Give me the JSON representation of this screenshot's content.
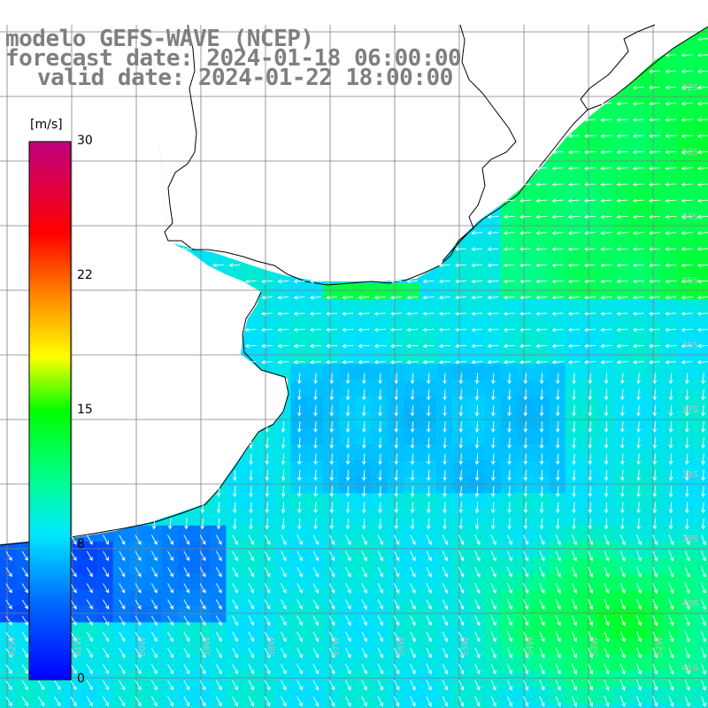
{
  "title": {
    "model": "modelo GEFS-WAVE (NCEP)",
    "forecast": "forecast date: 2024-01-18 06:00:00",
    "valid": "valid date: 2024-01-22 18:00:00"
  },
  "colorbar": {
    "unit": "[m/s]",
    "ticks": [
      "30",
      "22",
      "15",
      "8",
      "0"
    ],
    "min": 0,
    "max": 30
  },
  "latitude_labels": [
    "32S",
    "33S",
    "34S",
    "35S",
    "36S",
    "37S",
    "38S",
    "39S",
    "40S",
    "41S"
  ],
  "longitude_labels": [
    "62W",
    "61W",
    "60W",
    "59W",
    "58W",
    "57W",
    "56W",
    "55W",
    "54W",
    "53W",
    "52W"
  ],
  "map": {
    "land_color": "#ffffff",
    "coast_color": "#000000",
    "grid_color": "#7f7f7f",
    "arrow_color": "#ffffff",
    "palette": [
      "#0000ff",
      "#0080ff",
      "#00e0ff",
      "#00ff80",
      "#00ff00",
      "#ffff00",
      "#ff8000",
      "#ff0000",
      "#c8007d"
    ]
  }
}
